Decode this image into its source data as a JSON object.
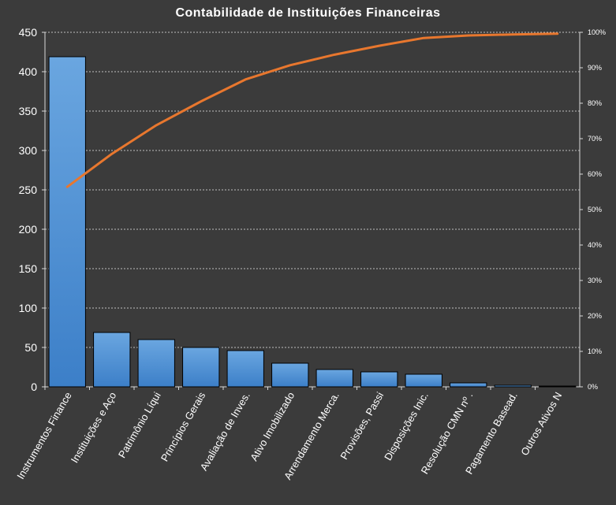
{
  "chart_data": {
    "type": "bar",
    "title": "Contabilidade  de Instituições  Financeiras",
    "categories": [
      "Instrumentos  Finance",
      "Instituições e Aço",
      "Patrimônio Líqui",
      "Princípios Gerais",
      "Avaliação de Inves.",
      "Ativo Imobilizado",
      "Arrendamento  Merca.",
      "Provisões, Passi",
      "Disposições Inic.",
      "Resolução CMN nº .",
      "Pagamento Basead.",
      "Outros Ativos N"
    ],
    "series": [
      {
        "type": "bar",
        "values": [
          419,
          69,
          60,
          50,
          46,
          30,
          22,
          19,
          16,
          5,
          2,
          1
        ]
      },
      {
        "type": "line",
        "values": [
          56.4,
          65.7,
          73.8,
          80.5,
          86.7,
          90.7,
          93.7,
          96.2,
          98.4,
          99.1,
          99.4,
          99.6
        ]
      }
    ],
    "y_left": {
      "ylim": [
        0,
        450
      ],
      "ticks": [
        "0",
        "50",
        "100",
        "150",
        "200",
        "250",
        "300",
        "350",
        "400",
        "450"
      ]
    },
    "y_right": {
      "ylim": [
        0,
        100
      ],
      "ticks": [
        "0%",
        "10%",
        "20%",
        "30%",
        "40%",
        "50%",
        "60%",
        "70%",
        "80%",
        "90%",
        "100%"
      ]
    },
    "grid": true,
    "legend": "none",
    "colors": {
      "background": "#3b3b3b",
      "bar_top": "#6aa6e0",
      "bar_bottom": "#3c7fc8",
      "bar_stroke": "#000000",
      "line": "#e8772e",
      "grid": "#bfbfbf",
      "axis": "#d9d9d9",
      "text": "#ffffff"
    }
  }
}
